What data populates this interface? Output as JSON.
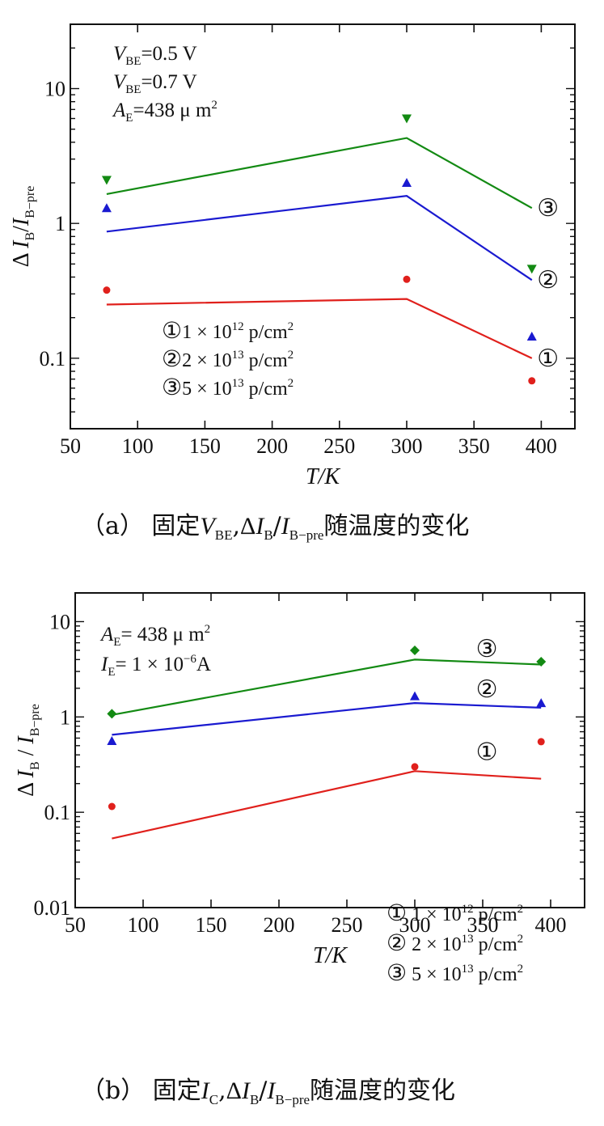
{
  "chart_data": [
    {
      "type": "line",
      "panel": "(a)",
      "caption": {
        "prefix": "（a）  固定",
        "v": "V",
        "v_sub": "BE",
        "comma": ",",
        "delta": "Δ",
        "ib": "I",
        "ib_sub": "B",
        "slash": "/",
        "ibpre": "I",
        "ibpre_sub": "B−pre",
        "suffix": "随温度的变化"
      },
      "xlabel": "T/K",
      "ylabel": {
        "delta": "Δ",
        "i1": "I",
        "sub1": "B",
        "slash": "/",
        "i2": "I",
        "sub2": "B−pre"
      },
      "x_ticks": [
        "50",
        "100",
        "150",
        "200",
        "250",
        "300",
        "350",
        "400"
      ],
      "y_ticks": [
        "0.1",
        "1",
        "10"
      ],
      "xlim": [
        50,
        425
      ],
      "ylim": [
        0.03,
        30
      ],
      "yscale": "log",
      "annotations": [
        {
          "var": "V",
          "sub": "BE",
          "text": "=0.5 V"
        },
        {
          "var": "V",
          "sub": "BE",
          "text": "=0.7 V"
        },
        {
          "var": "A",
          "sub": "E",
          "text": "=438 μ m",
          "sup": "2"
        }
      ],
      "legend": [
        {
          "mark": "①",
          "coef": "1 × 10",
          "exp": "12",
          "unit": " p/cm",
          "unit_sup": "2"
        },
        {
          "mark": "②",
          "coef": "2 × 10",
          "exp": "13",
          "unit": " p/cm",
          "unit_sup": "2"
        },
        {
          "mark": "③",
          "coef": "5 × 10",
          "exp": "13",
          "unit": " p/cm",
          "unit_sup": "2"
        }
      ],
      "series": [
        {
          "name": "①",
          "color": "#e0201c",
          "marker": "circle",
          "line": [
            [
              77,
              0.25
            ],
            [
              300,
              0.275
            ],
            [
              393,
              0.1
            ]
          ],
          "points": [
            [
              77,
              0.32
            ],
            [
              300,
              0.385
            ],
            [
              393,
              0.068
            ]
          ]
        },
        {
          "name": "②",
          "color": "#1a1ad0",
          "marker": "triangle-up",
          "line": [
            [
              77,
              0.87
            ],
            [
              300,
              1.6
            ],
            [
              393,
              0.38
            ]
          ],
          "points": [
            [
              77,
              1.3
            ],
            [
              300,
              2.0
            ],
            [
              393,
              0.145
            ]
          ]
        },
        {
          "name": "③",
          "color": "#138a13",
          "marker": "triangle-down",
          "line": [
            [
              77,
              1.65
            ],
            [
              300,
              4.3
            ],
            [
              393,
              1.3
            ]
          ],
          "points": [
            [
              77,
              2.1
            ],
            [
              300,
              6.0
            ],
            [
              393,
              0.46
            ]
          ]
        }
      ],
      "curve_marks": [
        {
          "text": "③",
          "x": 393,
          "y": 1.3
        },
        {
          "text": "②",
          "x": 393,
          "y": 0.38
        },
        {
          "text": "①",
          "x": 393,
          "y": 0.1
        }
      ]
    },
    {
      "type": "line",
      "panel": "(b)",
      "caption": {
        "prefix": "（b）  固定",
        "v": "I",
        "v_sub": "C",
        "comma": ",",
        "delta": "Δ",
        "ib": "I",
        "ib_sub": "B",
        "slash": "/",
        "ibpre": "I",
        "ibpre_sub": "B−pre",
        "suffix": "随温度的变化"
      },
      "xlabel": "T/K",
      "ylabel": {
        "delta": "Δ",
        "i1": "I",
        "sub1": "B",
        "slash": " / ",
        "i2": "I",
        "sub2": "B−pre"
      },
      "x_ticks": [
        "50",
        "100",
        "150",
        "200",
        "250",
        "300",
        "350",
        "400"
      ],
      "y_ticks": [
        "0.01",
        "0.1",
        "1",
        "10"
      ],
      "xlim": [
        50,
        425
      ],
      "ylim": [
        0.01,
        20
      ],
      "yscale": "log",
      "annotations": [
        {
          "var": "A",
          "sub": "E",
          "text": "= 438  μ m",
          "sup": "2"
        },
        {
          "var": "I",
          "sub": "E",
          "text": "= 1 × 10",
          "sup": "−6",
          "tail": "A"
        }
      ],
      "legend": [
        {
          "mark": "①",
          "coef": " 1 × 10",
          "exp": "12",
          "unit": " p/cm",
          "unit_sup": "2"
        },
        {
          "mark": "②",
          "coef": " 2 × 10",
          "exp": "13",
          "unit": " p/cm",
          "unit_sup": "2"
        },
        {
          "mark": "③",
          "coef": " 5 × 10",
          "exp": "13",
          "unit": " p/cm",
          "unit_sup": "2"
        }
      ],
      "series": [
        {
          "name": "①",
          "color": "#e0201c",
          "marker": "circle",
          "line": [
            [
              77,
              0.053
            ],
            [
              300,
              0.27
            ],
            [
              393,
              0.225
            ]
          ],
          "points": [
            [
              77,
              0.115
            ],
            [
              300,
              0.3
            ],
            [
              393,
              0.55
            ]
          ]
        },
        {
          "name": "②",
          "color": "#1a1ad0",
          "marker": "triangle-up",
          "line": [
            [
              77,
              0.65
            ],
            [
              300,
              1.4
            ],
            [
              393,
              1.25
            ]
          ],
          "points": [
            [
              77,
              0.56
            ],
            [
              300,
              1.65
            ],
            [
              393,
              1.4
            ]
          ]
        },
        {
          "name": "③",
          "color": "#138a13",
          "marker": "diamond",
          "line": [
            [
              77,
              1.05
            ],
            [
              300,
              4.0
            ],
            [
              393,
              3.55
            ]
          ],
          "points": [
            [
              77,
              1.08
            ],
            [
              300,
              5.0
            ],
            [
              393,
              3.8
            ]
          ]
        }
      ],
      "curve_marks": [
        {
          "text": "③",
          "x": 345,
          "y": 5.2
        },
        {
          "text": "②",
          "x": 345,
          "y": 1.95
        },
        {
          "text": "①",
          "x": 345,
          "y": 0.43
        }
      ]
    }
  ]
}
